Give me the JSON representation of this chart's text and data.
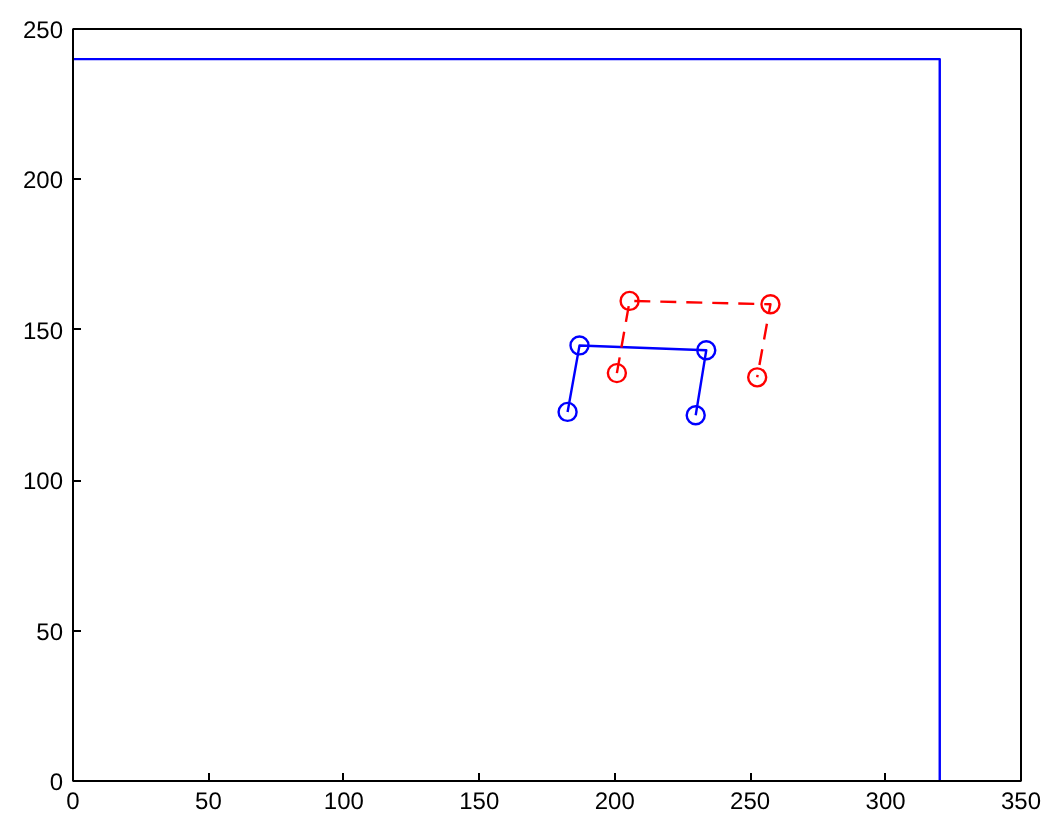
{
  "chart_data": {
    "type": "line",
    "xlim": [
      0,
      350
    ],
    "ylim": [
      0,
      250
    ],
    "xticks": [
      0,
      50,
      100,
      150,
      200,
      250,
      300,
      350
    ],
    "yticks": [
      0,
      50,
      100,
      150,
      200,
      250
    ],
    "grid": false,
    "series": [
      {
        "color": "#0000ff",
        "x": [
          0,
          320,
          320
        ],
        "values": [
          240,
          240,
          0
        ],
        "marker": "none",
        "line_style": "solid"
      },
      {
        "color": "#0000ff",
        "x": [
          182.6,
          187,
          233.8,
          229.9
        ],
        "values": [
          122.7,
          144.8,
          143.2,
          121.6
        ],
        "marker": "circle",
        "line_style": "solid"
      },
      {
        "color": "#ff0000",
        "x": [
          200.8,
          205.5,
          257.5,
          252.6
        ],
        "values": [
          135.6,
          159.6,
          158.5,
          134.2
        ],
        "marker": "circle",
        "line_style": "dashed"
      }
    ]
  }
}
